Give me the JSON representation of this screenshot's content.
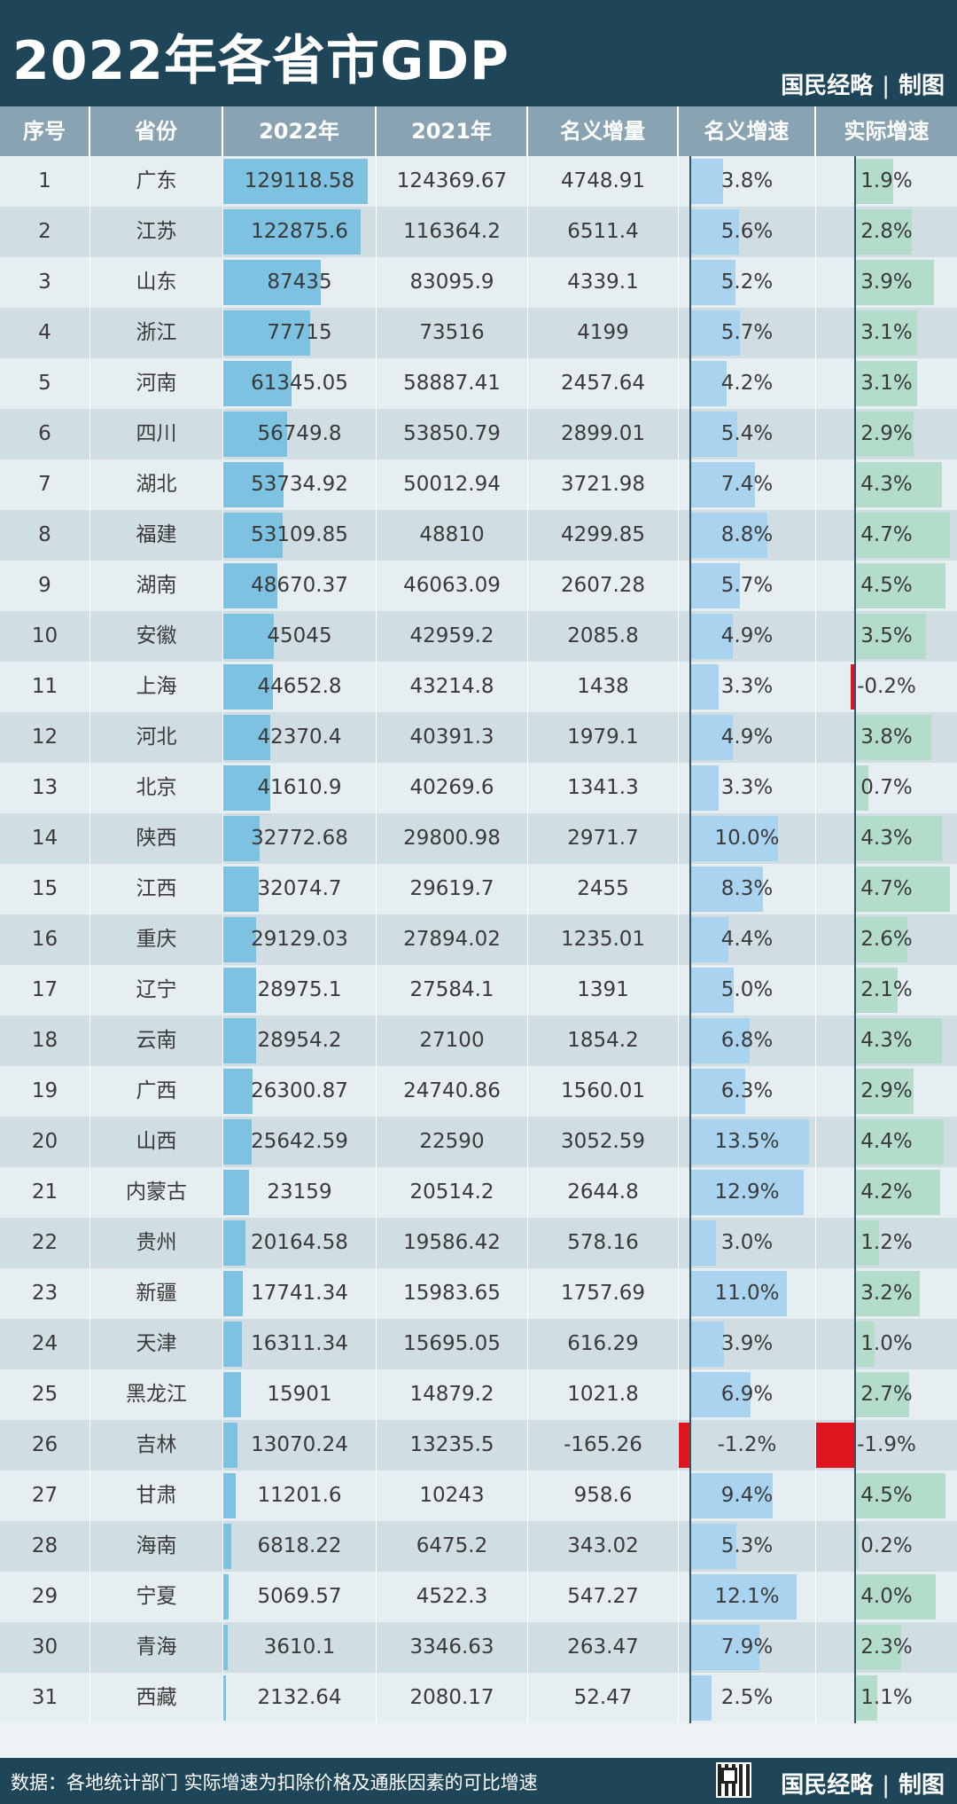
{
  "title": "2022年各省市GDP",
  "brand": {
    "name": "国民经略",
    "separator": "|",
    "suffix": "制图"
  },
  "footnote": "数据：各地统计部门 实际增速为扣除价格及通胀因素的可比增速",
  "colors": {
    "gdp_bar": "#7dc2e0",
    "nominal_bar": "#a9d3ef",
    "real_bar": "#b3dccb",
    "negative": "#e0141e"
  },
  "icons": {
    "qr": "qr-code-icon"
  },
  "chart_data": {
    "type": "table",
    "title": "2022年各省市GDP",
    "columns": [
      "序号",
      "省份",
      "2022年",
      "2021年",
      "名义增量",
      "名义增速",
      "实际增速"
    ],
    "rows": [
      [
        "1",
        "广东",
        "129118.58",
        "124369.67",
        "4748.91",
        "3.8%",
        "1.9%"
      ],
      [
        "2",
        "江苏",
        "122875.6",
        "116364.2",
        "6511.4",
        "5.6%",
        "2.8%"
      ],
      [
        "3",
        "山东",
        "87435",
        "83095.9",
        "4339.1",
        "5.2%",
        "3.9%"
      ],
      [
        "4",
        "浙江",
        "77715",
        "73516",
        "4199",
        "5.7%",
        "3.1%"
      ],
      [
        "5",
        "河南",
        "61345.05",
        "58887.41",
        "2457.64",
        "4.2%",
        "3.1%"
      ],
      [
        "6",
        "四川",
        "56749.8",
        "53850.79",
        "2899.01",
        "5.4%",
        "2.9%"
      ],
      [
        "7",
        "湖北",
        "53734.92",
        "50012.94",
        "3721.98",
        "7.4%",
        "4.3%"
      ],
      [
        "8",
        "福建",
        "53109.85",
        "48810",
        "4299.85",
        "8.8%",
        "4.7%"
      ],
      [
        "9",
        "湖南",
        "48670.37",
        "46063.09",
        "2607.28",
        "5.7%",
        "4.5%"
      ],
      [
        "10",
        "安徽",
        "45045",
        "42959.2",
        "2085.8",
        "4.9%",
        "3.5%"
      ],
      [
        "11",
        "上海",
        "44652.8",
        "43214.8",
        "1438",
        "3.3%",
        "-0.2%"
      ],
      [
        "12",
        "河北",
        "42370.4",
        "40391.3",
        "1979.1",
        "4.9%",
        "3.8%"
      ],
      [
        "13",
        "北京",
        "41610.9",
        "40269.6",
        "1341.3",
        "3.3%",
        "0.7%"
      ],
      [
        "14",
        "陕西",
        "32772.68",
        "29800.98",
        "2971.7",
        "10.0%",
        "4.3%"
      ],
      [
        "15",
        "江西",
        "32074.7",
        "29619.7",
        "2455",
        "8.3%",
        "4.7%"
      ],
      [
        "16",
        "重庆",
        "29129.03",
        "27894.02",
        "1235.01",
        "4.4%",
        "2.6%"
      ],
      [
        "17",
        "辽宁",
        "28975.1",
        "27584.1",
        "1391",
        "5.0%",
        "2.1%"
      ],
      [
        "18",
        "云南",
        "28954.2",
        "27100",
        "1854.2",
        "6.8%",
        "4.3%"
      ],
      [
        "19",
        "广西",
        "26300.87",
        "24740.86",
        "1560.01",
        "6.3%",
        "2.9%"
      ],
      [
        "20",
        "山西",
        "25642.59",
        "22590",
        "3052.59",
        "13.5%",
        "4.4%"
      ],
      [
        "21",
        "内蒙古",
        "23159",
        "20514.2",
        "2644.8",
        "12.9%",
        "4.2%"
      ],
      [
        "22",
        "贵州",
        "20164.58",
        "19586.42",
        "578.16",
        "3.0%",
        "1.2%"
      ],
      [
        "23",
        "新疆",
        "17741.34",
        "15983.65",
        "1757.69",
        "11.0%",
        "3.2%"
      ],
      [
        "24",
        "天津",
        "16311.34",
        "15695.05",
        "616.29",
        "3.9%",
        "1.0%"
      ],
      [
        "25",
        "黑龙江",
        "15901",
        "14879.2",
        "1021.8",
        "6.9%",
        "2.7%"
      ],
      [
        "26",
        "吉林",
        "13070.24",
        "13235.5",
        "-165.26",
        "-1.2%",
        "-1.9%"
      ],
      [
        "27",
        "甘肃",
        "11201.6",
        "10243",
        "958.6",
        "9.4%",
        "4.5%"
      ],
      [
        "28",
        "海南",
        "6818.22",
        "6475.2",
        "343.02",
        "5.3%",
        "0.2%"
      ],
      [
        "29",
        "宁夏",
        "5069.57",
        "4522.3",
        "547.27",
        "12.1%",
        "4.0%"
      ],
      [
        "30",
        "青海",
        "3610.1",
        "3346.63",
        "263.47",
        "7.9%",
        "2.3%"
      ],
      [
        "31",
        "西藏",
        "2132.64",
        "2080.17",
        "52.47",
        "2.5%",
        "1.1%"
      ]
    ],
    "bar_columns": {
      "2022年": {
        "max": 129118.58
      },
      "名义增速": {
        "min": -1.2,
        "max": 13.5
      },
      "实际增速": {
        "min": -1.9,
        "max": 4.7
      }
    }
  }
}
